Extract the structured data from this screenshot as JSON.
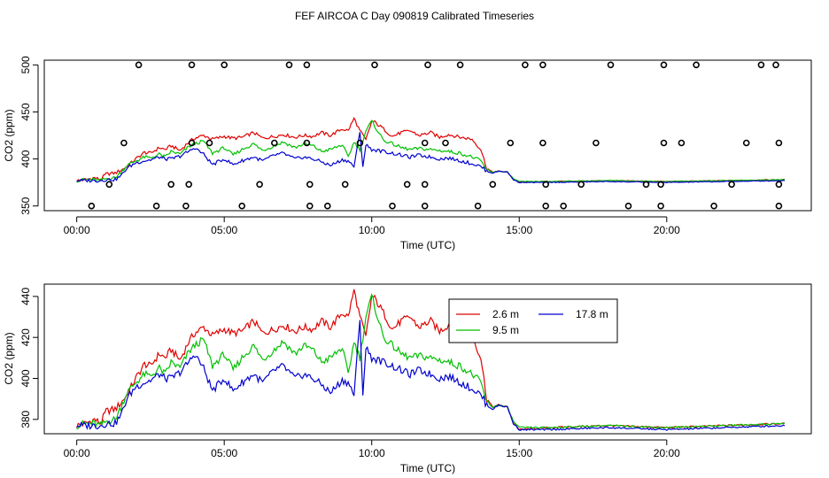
{
  "title": "FEF AIRCOA C  Day 090819  Calibrated Timeseries",
  "colors": {
    "2.6 m": "#e00000",
    "9.5 m": "#00c000",
    "17.8 m": "#0000d0",
    "axis": "#000000"
  },
  "chart_data": [
    {
      "type": "line",
      "xlabel": "Time (UTC)",
      "ylabel": "CO2 (ppm)",
      "xlim": [
        -1.1,
        24.9
      ],
      "ylim": [
        345,
        505
      ],
      "xticks": [
        0,
        5,
        10,
        15,
        20
      ],
      "xtick_labels": [
        "00:00",
        "05:00",
        "10:00",
        "15:00",
        "20:00"
      ],
      "yticks": [
        350,
        400,
        450,
        500
      ],
      "ytick_labels": [
        "350",
        "400",
        "450",
        "500"
      ],
      "knots": {
        "2.6 m": [
          [
            0,
            377
          ],
          [
            0.3,
            378
          ],
          [
            0.6,
            380
          ],
          [
            0.8,
            378
          ],
          [
            1.0,
            384
          ],
          [
            1.3,
            385
          ],
          [
            1.5,
            388
          ],
          [
            1.7,
            392
          ],
          [
            2.0,
            400
          ],
          [
            2.3,
            407
          ],
          [
            2.5,
            406
          ],
          [
            2.8,
            412
          ],
          [
            3.0,
            410
          ],
          [
            3.2,
            414
          ],
          [
            3.5,
            409
          ],
          [
            3.8,
            418
          ],
          [
            4.0,
            422
          ],
          [
            4.3,
            425
          ],
          [
            4.6,
            421
          ],
          [
            5.0,
            424
          ],
          [
            5.3,
            422
          ],
          [
            5.6,
            423
          ],
          [
            6.0,
            428
          ],
          [
            6.3,
            422
          ],
          [
            6.7,
            424
          ],
          [
            7.0,
            426
          ],
          [
            7.4,
            423
          ],
          [
            7.7,
            425
          ],
          [
            8.0,
            424
          ],
          [
            8.3,
            428
          ],
          [
            8.6,
            425
          ],
          [
            9.0,
            432
          ],
          [
            9.2,
            430
          ],
          [
            9.4,
            443
          ],
          [
            9.6,
            430
          ],
          [
            9.8,
            420
          ],
          [
            10.0,
            440
          ],
          [
            10.1,
            439
          ],
          [
            10.4,
            432
          ],
          [
            10.7,
            424
          ],
          [
            11.0,
            428
          ],
          [
            11.3,
            430
          ],
          [
            11.6,
            425
          ],
          [
            12.0,
            428
          ],
          [
            12.3,
            423
          ],
          [
            12.6,
            426
          ],
          [
            13.0,
            423
          ],
          [
            13.4,
            421
          ],
          [
            13.7,
            410
          ],
          [
            13.9,
            390
          ],
          [
            14.1,
            386
          ],
          [
            14.3,
            387
          ],
          [
            14.6,
            386
          ],
          [
            14.8,
            379
          ],
          [
            15.0,
            375
          ],
          [
            16.0,
            376
          ],
          [
            18.0,
            377
          ],
          [
            20.0,
            376
          ],
          [
            22.0,
            377
          ],
          [
            24.0,
            378
          ]
        ],
        "9.5 m": [
          [
            0,
            377
          ],
          [
            0.3,
            378
          ],
          [
            0.6,
            378
          ],
          [
            0.8,
            377
          ],
          [
            1.0,
            379
          ],
          [
            1.3,
            380
          ],
          [
            1.5,
            386
          ],
          [
            1.7,
            393
          ],
          [
            2.0,
            398
          ],
          [
            2.3,
            402
          ],
          [
            2.5,
            401
          ],
          [
            2.8,
            405
          ],
          [
            3.0,
            402
          ],
          [
            3.2,
            408
          ],
          [
            3.5,
            405
          ],
          [
            3.8,
            413
          ],
          [
            4.0,
            416
          ],
          [
            4.3,
            419
          ],
          [
            4.6,
            406
          ],
          [
            5.0,
            412
          ],
          [
            5.3,
            404
          ],
          [
            5.6,
            410
          ],
          [
            6.0,
            416
          ],
          [
            6.3,
            409
          ],
          [
            6.7,
            414
          ],
          [
            7.0,
            418
          ],
          [
            7.4,
            412
          ],
          [
            7.7,
            416
          ],
          [
            8.0,
            414
          ],
          [
            8.3,
            408
          ],
          [
            8.6,
            410
          ],
          [
            9.0,
            415
          ],
          [
            9.2,
            402
          ],
          [
            9.4,
            418
          ],
          [
            9.6,
            410
          ],
          [
            9.8,
            430
          ],
          [
            10.0,
            440
          ],
          [
            10.2,
            430
          ],
          [
            10.4,
            420
          ],
          [
            10.7,
            416
          ],
          [
            11.0,
            412
          ],
          [
            11.3,
            410
          ],
          [
            11.6,
            411
          ],
          [
            12.0,
            410
          ],
          [
            12.3,
            409
          ],
          [
            12.6,
            408
          ],
          [
            13.0,
            406
          ],
          [
            13.4,
            402
          ],
          [
            13.7,
            398
          ],
          [
            13.9,
            388
          ],
          [
            14.1,
            386
          ],
          [
            14.3,
            387
          ],
          [
            14.6,
            386
          ],
          [
            14.8,
            379
          ],
          [
            15.0,
            376
          ],
          [
            16.0,
            376
          ],
          [
            18.0,
            377
          ],
          [
            20.0,
            376
          ],
          [
            22.0,
            377
          ],
          [
            24.0,
            378
          ]
        ],
        "17.8 m": [
          [
            0,
            377
          ],
          [
            0.3,
            377
          ],
          [
            0.6,
            377
          ],
          [
            0.8,
            377
          ],
          [
            1.0,
            378
          ],
          [
            1.3,
            378
          ],
          [
            1.5,
            382
          ],
          [
            1.7,
            390
          ],
          [
            2.0,
            396
          ],
          [
            2.3,
            398
          ],
          [
            2.5,
            399
          ],
          [
            2.8,
            402
          ],
          [
            3.0,
            400
          ],
          [
            3.2,
            400
          ],
          [
            3.5,
            403
          ],
          [
            3.8,
            408
          ],
          [
            4.0,
            412
          ],
          [
            4.3,
            405
          ],
          [
            4.6,
            394
          ],
          [
            5.0,
            400
          ],
          [
            5.3,
            394
          ],
          [
            5.6,
            398
          ],
          [
            6.0,
            402
          ],
          [
            6.3,
            398
          ],
          [
            6.7,
            404
          ],
          [
            7.0,
            406
          ],
          [
            7.4,
            400
          ],
          [
            7.7,
            402
          ],
          [
            8.0,
            400
          ],
          [
            8.3,
            397
          ],
          [
            8.6,
            393
          ],
          [
            9.0,
            399
          ],
          [
            9.2,
            398
          ],
          [
            9.4,
            392
          ],
          [
            9.6,
            428
          ],
          [
            9.7,
            392
          ],
          [
            9.8,
            415
          ],
          [
            10.0,
            410
          ],
          [
            10.4,
            408
          ],
          [
            10.7,
            406
          ],
          [
            11.0,
            404
          ],
          [
            11.3,
            402
          ],
          [
            11.6,
            404
          ],
          [
            12.0,
            402
          ],
          [
            12.3,
            400
          ],
          [
            12.6,
            401
          ],
          [
            13.0,
            398
          ],
          [
            13.4,
            395
          ],
          [
            13.7,
            392
          ],
          [
            13.9,
            387
          ],
          [
            14.1,
            385
          ],
          [
            14.3,
            387
          ],
          [
            14.6,
            386
          ],
          [
            14.8,
            378
          ],
          [
            15.0,
            375
          ],
          [
            16.0,
            375
          ],
          [
            18.0,
            376
          ],
          [
            20.0,
            375
          ],
          [
            22.0,
            376
          ],
          [
            24.0,
            377
          ]
        ]
      },
      "circles": [
        [
          0.5,
          350
        ],
        [
          1.1,
          373
        ],
        [
          1.6,
          417
        ],
        [
          2.1,
          500
        ],
        [
          2.7,
          350
        ],
        [
          3.2,
          373
        ],
        [
          3.7,
          350
        ],
        [
          3.8,
          373
        ],
        [
          3.9,
          500
        ],
        [
          3.9,
          417
        ],
        [
          4.5,
          417
        ],
        [
          5.0,
          500
        ],
        [
          5.6,
          350
        ],
        [
          6.2,
          373
        ],
        [
          6.7,
          417
        ],
        [
          7.2,
          500
        ],
        [
          7.8,
          500
        ],
        [
          7.8,
          417
        ],
        [
          7.9,
          373
        ],
        [
          7.9,
          350
        ],
        [
          8.5,
          350
        ],
        [
          9.1,
          373
        ],
        [
          9.6,
          417
        ],
        [
          10.1,
          500
        ],
        [
          10.7,
          350
        ],
        [
          11.2,
          373
        ],
        [
          11.8,
          373
        ],
        [
          11.8,
          350
        ],
        [
          11.8,
          417
        ],
        [
          11.9,
          500
        ],
        [
          12.5,
          417
        ],
        [
          13.0,
          500
        ],
        [
          13.6,
          350
        ],
        [
          14.1,
          373
        ],
        [
          14.7,
          417
        ],
        [
          15.2,
          500
        ],
        [
          15.8,
          500
        ],
        [
          15.8,
          417
        ],
        [
          15.9,
          373
        ],
        [
          15.9,
          350
        ],
        [
          16.5,
          350
        ],
        [
          17.1,
          373
        ],
        [
          17.6,
          417
        ],
        [
          18.1,
          500
        ],
        [
          18.7,
          350
        ],
        [
          19.3,
          373
        ],
        [
          19.8,
          350
        ],
        [
          19.8,
          373
        ],
        [
          19.9,
          500
        ],
        [
          19.9,
          417
        ],
        [
          20.5,
          417
        ],
        [
          21.0,
          500
        ],
        [
          21.6,
          350
        ],
        [
          22.2,
          373
        ],
        [
          22.7,
          417
        ],
        [
          23.2,
          500
        ],
        [
          23.7,
          500
        ],
        [
          23.8,
          417
        ],
        [
          23.8,
          373
        ],
        [
          23.8,
          350
        ]
      ]
    },
    {
      "type": "line",
      "xlabel": "Time (UTC)",
      "ylabel": "CO2 (ppm)",
      "xlim": [
        -1.1,
        24.9
      ],
      "ylim": [
        373,
        446
      ],
      "xticks": [
        0,
        5,
        10,
        15,
        20
      ],
      "xtick_labels": [
        "00:00",
        "05:00",
        "10:00",
        "15:00",
        "20:00"
      ],
      "yticks": [
        380,
        400,
        420,
        440
      ],
      "ytick_labels": [
        "380",
        "400",
        "420",
        "440"
      ],
      "legend": {
        "position": "top-center",
        "entries": [
          "2.6 m",
          "9.5 m",
          "17.8 m"
        ]
      },
      "series_ref": "same knot series as upper panel (2.6 m, 9.5 m, 17.8 m)"
    }
  ]
}
